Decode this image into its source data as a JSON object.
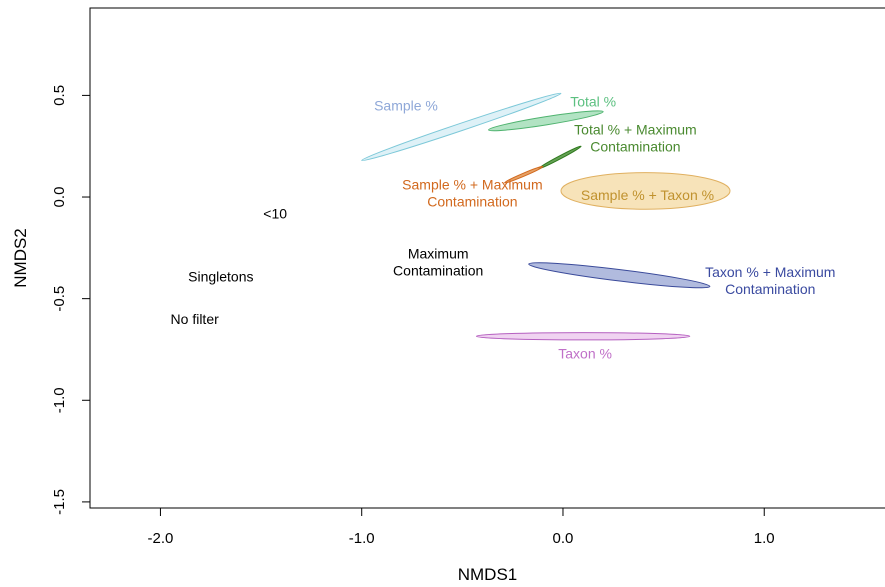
{
  "chart_data": {
    "type": "scatter",
    "title": "",
    "xlabel": "NMDS1",
    "ylabel": "NMDS2",
    "xlim": [
      -2.35,
      1.6
    ],
    "ylim": [
      -1.53,
      0.93
    ],
    "x_ticks": [
      {
        "value": -2.0,
        "label": "-2.0"
      },
      {
        "value": -1.0,
        "label": "-1.0"
      },
      {
        "value": 0.0,
        "label": "0.0"
      },
      {
        "value": 1.0,
        "label": "1.0"
      }
    ],
    "y_ticks": [
      {
        "value": 0.5,
        "label": "0.5"
      },
      {
        "value": 0.0,
        "label": "0.0"
      },
      {
        "value": -0.5,
        "label": "-0.5"
      },
      {
        "value": -1.0,
        "label": "-1.0"
      },
      {
        "value": -1.5,
        "label": "-1.5"
      }
    ],
    "grid": false,
    "ellipses": [
      {
        "name": "Sample %",
        "x1": -1.0,
        "y1": 0.18,
        "x2": -0.01,
        "y2": 0.51,
        "halfwidth": 0.018,
        "fill": "#d6eef5",
        "stroke": "#7cc8d8"
      },
      {
        "name": "Total %",
        "x1": -0.37,
        "y1": 0.33,
        "x2": 0.2,
        "y2": 0.42,
        "halfwidth": 0.02,
        "fill": "#9fdcb4",
        "stroke": "#4fb36f"
      },
      {
        "name": "Total % + Maximum Contamination",
        "x1": -0.12,
        "y1": 0.14,
        "x2": 0.09,
        "y2": 0.25,
        "halfwidth": 0.006,
        "fill": "#3e8a2a",
        "stroke": "#2f7a1e"
      },
      {
        "name": "Sample % + Maximum Contamination",
        "x1": -0.29,
        "y1": 0.07,
        "x2": -0.1,
        "y2": 0.15,
        "halfwidth": 0.005,
        "fill": "#e08a3e",
        "stroke": "#d2691e"
      },
      {
        "name": "Sample % + Taxon %",
        "x1": -0.01,
        "y1": 0.03,
        "x2": 0.83,
        "y2": 0.03,
        "halfwidth": 0.09,
        "fill": "#f5dca8",
        "stroke": "#e0b060"
      },
      {
        "name": "Taxon % + Maximum Contamination",
        "x1": -0.17,
        "y1": -0.33,
        "x2": 0.73,
        "y2": -0.44,
        "halfwidth": 0.028,
        "fill": "#9eaad6",
        "stroke": "#3a4a9a"
      },
      {
        "name": "Taxon %",
        "x1": -0.43,
        "y1": -0.685,
        "x2": 0.63,
        "y2": -0.685,
        "halfwidth": 0.018,
        "fill": "#ecc8ee",
        "stroke": "#b560c0"
      }
    ],
    "labels": [
      {
        "lines": [
          "Sample %"
        ],
        "x": -0.78,
        "y": 0.45,
        "color": "#8fa8d8"
      },
      {
        "lines": [
          "Total %"
        ],
        "x": 0.15,
        "y": 0.47,
        "color": "#5cc080"
      },
      {
        "lines": [
          "Total % + Maximum",
          "Contamination"
        ],
        "x": 0.36,
        "y": 0.29,
        "color": "#4a8a30"
      },
      {
        "lines": [
          "Sample % + Maximum",
          "Contamination"
        ],
        "x": -0.45,
        "y": 0.02,
        "color": "#d2691e"
      },
      {
        "lines": [
          "Sample % + Taxon %"
        ],
        "x": 0.42,
        "y": 0.01,
        "color": "#c0922e"
      },
      {
        "lines": [
          "<10"
        ],
        "x": -1.43,
        "y": -0.08,
        "color": "#000000"
      },
      {
        "lines": [
          "Maximum",
          "Contamination"
        ],
        "x": -0.62,
        "y": -0.32,
        "color": "#000000"
      },
      {
        "lines": [
          "Singletons"
        ],
        "x": -1.7,
        "y": -0.39,
        "color": "#000000"
      },
      {
        "lines": [
          "Taxon % + Maximum",
          "Contamination"
        ],
        "x": 1.03,
        "y": -0.41,
        "color": "#3a4aa0"
      },
      {
        "lines": [
          "No filter"
        ],
        "x": -1.83,
        "y": -0.6,
        "color": "#000000"
      },
      {
        "lines": [
          "Taxon %"
        ],
        "x": 0.11,
        "y": -0.77,
        "color": "#c070c8"
      }
    ]
  }
}
